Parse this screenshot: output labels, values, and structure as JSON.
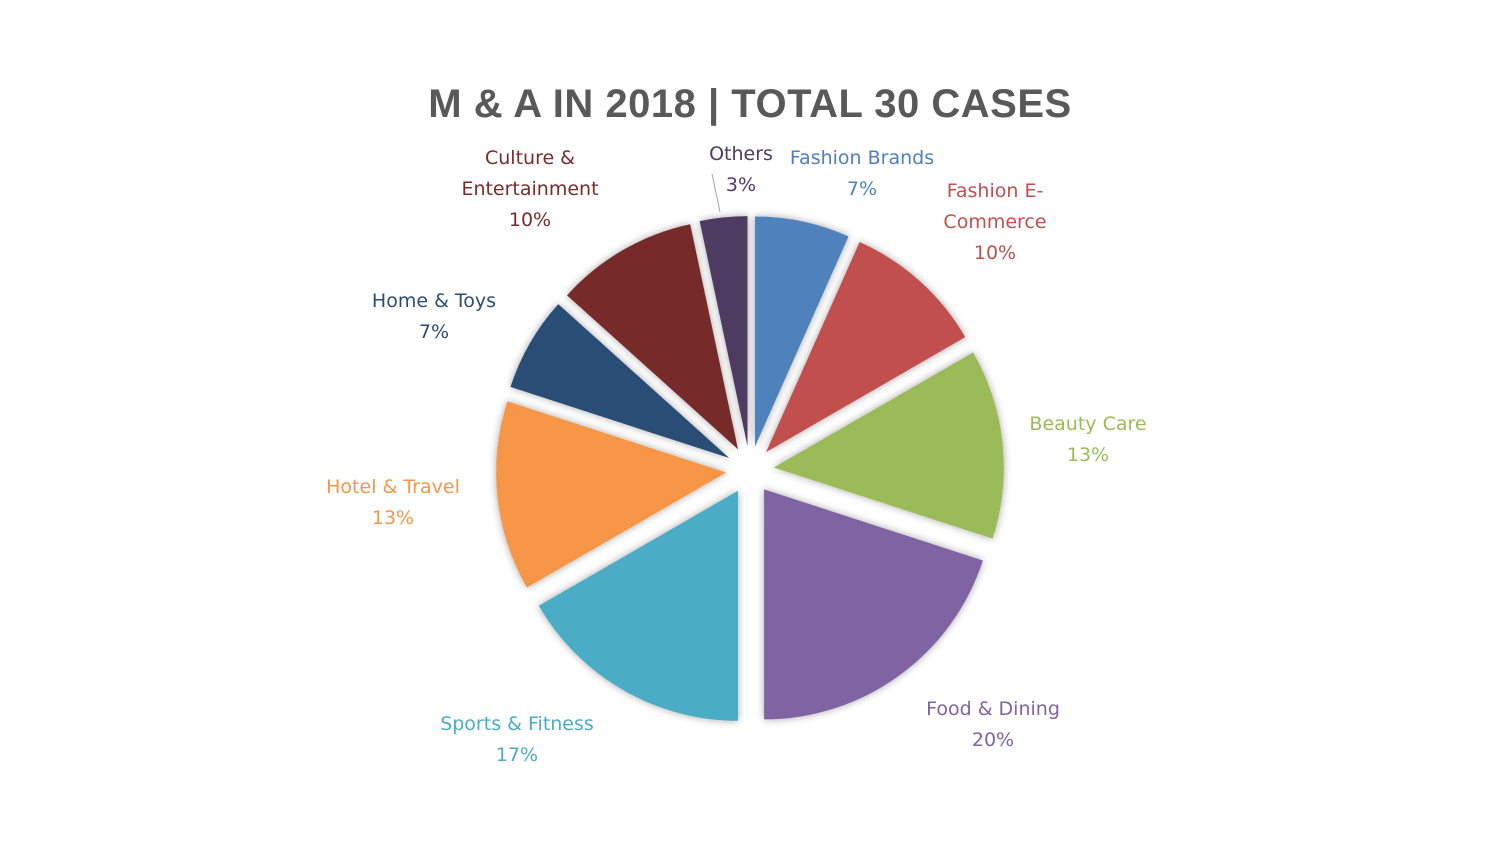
{
  "chart_data": {
    "type": "pie",
    "title": "M & A IN 2018 | TOTAL 30 CASES",
    "start_angle_deg": 0,
    "direction": "clockwise",
    "exploded": true,
    "slices": [
      {
        "label_lines": [
          "Fashion Brands"
        ],
        "pct_label": "7%",
        "value": 2,
        "color": "#4F81BD"
      },
      {
        "label_lines": [
          "Fashion E-",
          "Commerce"
        ],
        "pct_label": "10%",
        "value": 3,
        "color": "#C0504D"
      },
      {
        "label_lines": [
          "Beauty Care"
        ],
        "pct_label": "13%",
        "value": 4,
        "color": "#9BBB59"
      },
      {
        "label_lines": [
          "Food & Dining"
        ],
        "pct_label": "20%",
        "value": 6,
        "color": "#8064A2"
      },
      {
        "label_lines": [
          "Sports & Fitness"
        ],
        "pct_label": "17%",
        "value": 5,
        "color": "#4BACC6"
      },
      {
        "label_lines": [
          "Hotel & Travel"
        ],
        "pct_label": "13%",
        "value": 4,
        "color": "#F79646"
      },
      {
        "label_lines": [
          "Home & Toys"
        ],
        "pct_label": "7%",
        "value": 2,
        "color": "#2C4D75"
      },
      {
        "label_lines": [
          "Culture  &",
          "Entertainment"
        ],
        "pct_label": "10%",
        "value": 3,
        "color": "#772C2A"
      },
      {
        "label_lines": [
          "Others"
        ],
        "pct_label": "3%",
        "value": 1,
        "color": "#4D3B62"
      }
    ]
  }
}
